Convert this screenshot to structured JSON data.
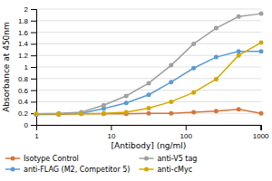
{
  "chart_data": {
    "type": "line",
    "xlabel": "[Antibody] (ng/ml)",
    "ylabel": "Absorbance at 450nm",
    "x": [
      1,
      2,
      4,
      8,
      16,
      32,
      64,
      128,
      256,
      512,
      1024
    ],
    "series": [
      {
        "name": "Isotype Control",
        "color": "#d4763b",
        "marker": "circle",
        "values": [
          0.18,
          0.18,
          0.19,
          0.19,
          0.19,
          0.2,
          0.2,
          0.22,
          0.24,
          0.27,
          0.2
        ]
      },
      {
        "name": "anti-FLAG (M2, Competitor 5)",
        "color": "#5b9bd5",
        "marker": "circle",
        "values": [
          0.18,
          0.19,
          0.2,
          0.28,
          0.38,
          0.52,
          0.74,
          0.98,
          1.17,
          1.27,
          1.27
        ]
      },
      {
        "name": "anti-V5 tag",
        "color": "#a0a0a0",
        "marker": "circle",
        "values": [
          0.19,
          0.2,
          0.22,
          0.34,
          0.5,
          0.72,
          1.03,
          1.4,
          1.67,
          1.87,
          1.92
        ]
      },
      {
        "name": "anti-cMyc",
        "color": "#d4a800",
        "marker": "circle",
        "values": [
          0.19,
          0.19,
          0.19,
          0.2,
          0.22,
          0.29,
          0.4,
          0.56,
          0.79,
          1.2,
          1.42
        ]
      }
    ],
    "log": "x",
    "xlim": [
      1,
      1024
    ],
    "xticks": [
      1,
      10,
      100,
      1000
    ],
    "ylim": [
      0,
      2
    ],
    "yticks": [
      0,
      0.2,
      0.4,
      0.6,
      0.8,
      1,
      1.2,
      1.4,
      1.6,
      1.8,
      2
    ],
    "grid": "y",
    "legend": "bottom"
  }
}
